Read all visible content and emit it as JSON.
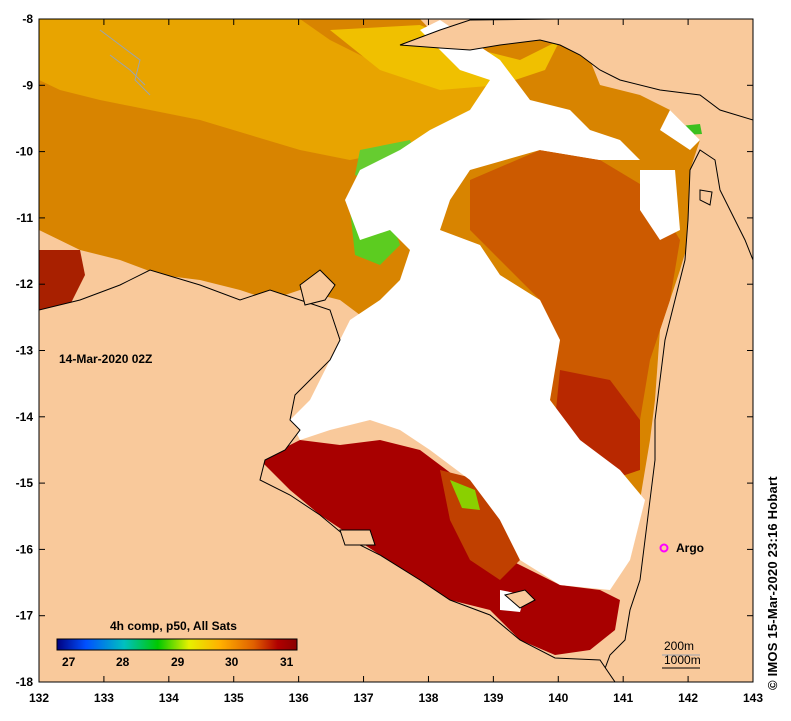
{
  "timestamp_label": "14-Mar-2020 02Z",
  "credit": "© IMOS 15-Mar-2020 23:16 Hobart",
  "axes": {
    "x_ticks": [
      "132",
      "133",
      "134",
      "135",
      "136",
      "137",
      "138",
      "139",
      "140",
      "141",
      "142",
      "143"
    ],
    "y_ticks": [
      "-8",
      "-9",
      "-10",
      "-11",
      "-12",
      "-13",
      "-14",
      "-15",
      "-16",
      "-17",
      "-18"
    ]
  },
  "legend": {
    "title": "4h comp, p50, All Sats",
    "ticks": [
      "27",
      "28",
      "29",
      "30",
      "31"
    ],
    "colors": [
      "#000080",
      "#0050ff",
      "#00c0c0",
      "#00c800",
      "#e6f000",
      "#ffb000",
      "#e06000",
      "#b00000",
      "#8a0000"
    ]
  },
  "marker": {
    "label": "Argo",
    "color": "#ff00ff"
  },
  "contours": [
    "200m",
    "1000m"
  ],
  "colors": {
    "land": "#f9c99b",
    "no_data": "#ffffff",
    "sst_warm": "#a80000",
    "sst_orange": "#d88000",
    "sst_yellow": "#f0c000",
    "sst_green": "#3cc020"
  }
}
